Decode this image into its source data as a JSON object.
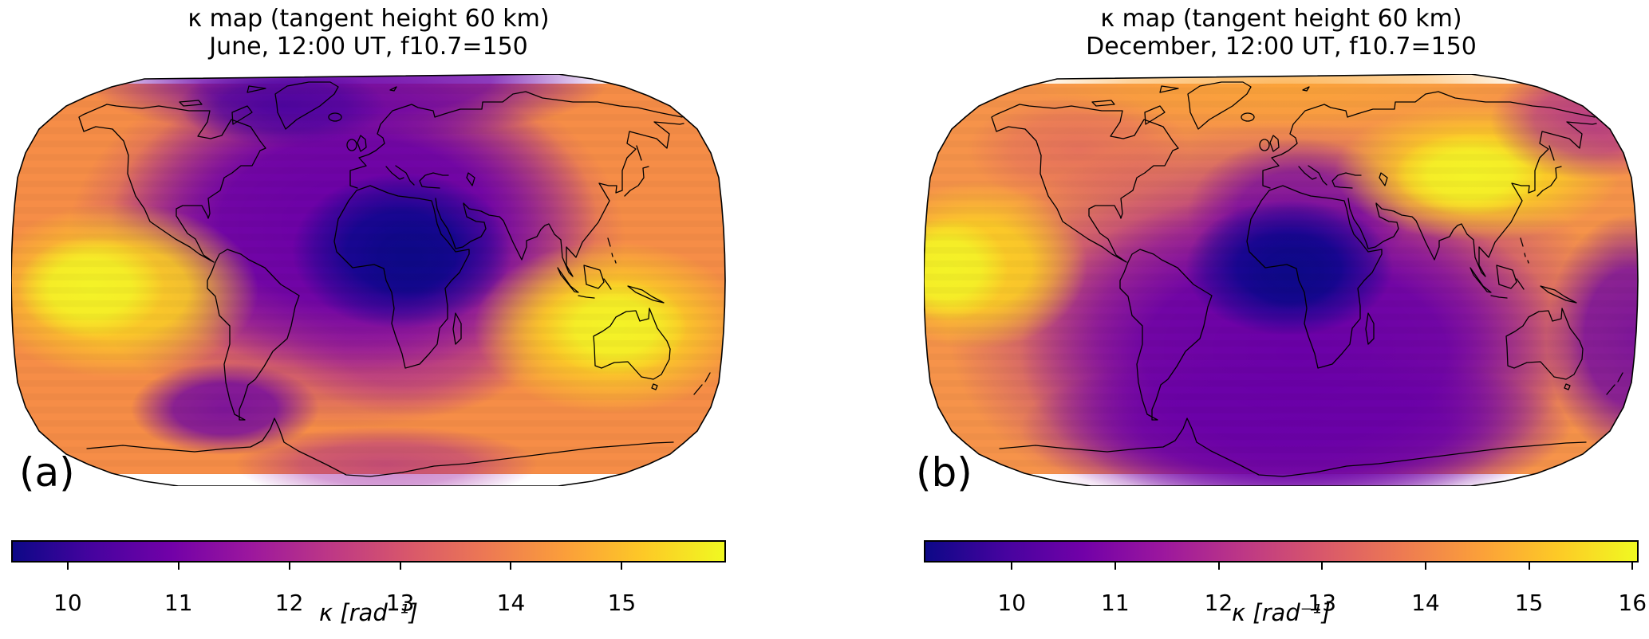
{
  "panels": [
    {
      "id": "a",
      "corner_label": "(a)",
      "title_line1": "κ map (tangent height 60 km)",
      "title_line2": "June, 12:00 UT, f10.7=150",
      "colorbar": {
        "label": "κ [rad⁻¹]",
        "vmin": 9.49,
        "vmax": 15.94,
        "ticks": [
          10,
          11,
          12,
          13,
          14,
          15
        ]
      }
    },
    {
      "id": "b",
      "corner_label": "(b)",
      "title_line1": "κ map (tangent height 60 km)",
      "title_line2": "December, 12:00 UT, f10.7=150",
      "colorbar": {
        "label": "κ [rad⁻¹]",
        "vmin": 9.15,
        "vmax": 16.06,
        "ticks": [
          10,
          11,
          12,
          13,
          14,
          15,
          16
        ]
      }
    }
  ],
  "colormap": {
    "name": "plasma",
    "stops": [
      "#0d0887",
      "#46039f",
      "#7201a8",
      "#9c179e",
      "#bd3786",
      "#d8576b",
      "#ed7953",
      "#fb9f3a",
      "#fdca26",
      "#f0f921"
    ]
  },
  "chart_data": [
    {
      "type": "heatmap",
      "subtype": "geographic-field-map",
      "projection": "Robinson (global, coastlines overlaid in black)",
      "panel": "(a)",
      "title": "κ map (tangent height 60 km)",
      "subtitle": "June, 12:00 UT, f10.7=150",
      "colorbar_label": "κ [rad⁻¹]",
      "colormap": "plasma",
      "value_range": [
        9.49,
        15.94
      ],
      "colorbar_ticks": [
        10,
        11,
        12,
        13,
        14,
        15
      ],
      "legend_position": "horizontal colorbar below map",
      "features": [
        {
          "region": "North-Central Africa / Mediterranean (subsolar, summer hemisphere)",
          "value": "global minimum κ ≈ 9.5 rad⁻¹ (dark navy)"
        },
        {
          "region": "Europe, North Atlantic, North America and Arctic",
          "value": "low κ ≈ 10.5–12 rad⁻¹ (purple)"
        },
        {
          "region": "south-east Pacific near left map edge, ~0–15°S",
          "value": "global maximum κ ≈ 15.9 rad⁻¹ (bright yellow)"
        },
        {
          "region": "Australia / western Pacific",
          "value": "secondary maximum κ ≈ 15.5 rad⁻¹ (yellow)"
        },
        {
          "region": "south-west of South America and along Antarctic coast",
          "value": "local low κ ≈ 11–12 rad⁻¹ (magenta-purple)"
        },
        {
          "region": "southern mid-latitude oceans and north-east Asia",
          "value": "κ ≈ 13.5–14.5 rad⁻¹ (orange)"
        }
      ]
    },
    {
      "type": "heatmap",
      "subtype": "geographic-field-map",
      "projection": "Robinson (global, coastlines overlaid in black)",
      "panel": "(b)",
      "title": "κ map (tangent height 60 km)",
      "subtitle": "December, 12:00 UT, f10.7=150",
      "colorbar_label": "κ [rad⁻¹]",
      "colormap": "plasma",
      "value_range": [
        9.15,
        16.06
      ],
      "colorbar_ticks": [
        10,
        11,
        12,
        13,
        14,
        15,
        16
      ],
      "legend_position": "horizontal colorbar below map",
      "features": [
        {
          "region": "Gulf of Guinea / equatorial Africa (subsolar, summer-south hemisphere)",
          "value": "global minimum κ ≈ 9.2 rad⁻¹ (dark navy)"
        },
        {
          "region": "entire southern hemisphere mid-high latitudes incl. South America, southern Africa, Antarctica",
          "value": "low κ ≈ 10.5–12 rad⁻¹ (purple)"
        },
        {
          "region": "equatorial Pacific at left map edge",
          "value": "global maximum κ ≈ 16 rad⁻¹ (bright yellow)"
        },
        {
          "region": "central/north-east Asia (Siberia, China)",
          "value": "secondary maximum κ ≈ 15.5 rad⁻¹ (yellow)"
        },
        {
          "region": "northern high latitudes and North America",
          "value": "κ ≈ 13.5–14.5 rad⁻¹ (orange, salmon over Alaska)"
        },
        {
          "region": "north-east Pacific corner near Kamchatka and right edge south of equator",
          "value": "κ ≈ 12 rad⁻¹ (magenta patches)"
        }
      ]
    }
  ]
}
